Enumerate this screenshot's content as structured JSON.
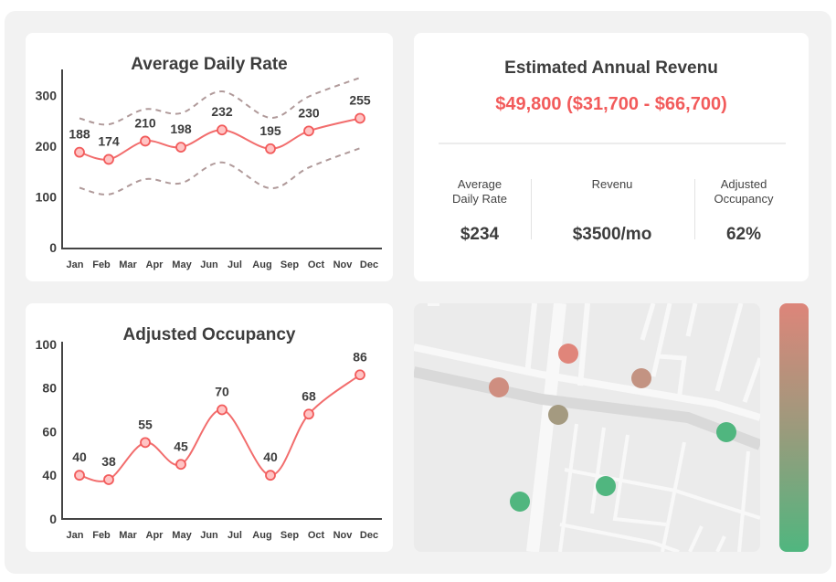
{
  "adr_chart": {
    "chart_data": {
      "type": "line",
      "title": "Average Daily Rate",
      "months": [
        "Jan",
        "Feb",
        "Mar",
        "Apr",
        "May",
        "Jun",
        "Jul",
        "Aug",
        "Sep",
        "Oct",
        "Nov",
        "Dec"
      ],
      "yticks": [
        0,
        100,
        200,
        300
      ],
      "ylim": [
        0,
        340
      ],
      "points": [
        {
          "month": "Jan",
          "value": 188
        },
        {
          "month": "Feb",
          "value": 174
        },
        {
          "month": "Apr",
          "value": 210
        },
        {
          "month": "May",
          "value": 198
        },
        {
          "month": "Jun",
          "value": 232
        },
        {
          "month": "Aug",
          "value": 195
        },
        {
          "month": "Oct",
          "value": 230
        },
        {
          "month": "Dec",
          "value": 255
        }
      ],
      "upper_band": [
        255,
        243,
        273,
        265,
        308,
        256,
        298,
        335
      ],
      "lower_band": [
        118,
        105,
        135,
        127,
        168,
        117,
        158,
        196
      ],
      "line_color": "#f26d6d",
      "band_color": "#b09a9a",
      "grid": false
    }
  },
  "occ_chart": {
    "chart_data": {
      "type": "line",
      "title": "Adjusted Occupancy",
      "months": [
        "Jan",
        "Feb",
        "Mar",
        "Apr",
        "May",
        "Jun",
        "Jul",
        "Aug",
        "Sep",
        "Oct",
        "Nov",
        "Dec"
      ],
      "yticks": [
        0,
        40,
        60,
        80,
        100
      ],
      "points": [
        {
          "month": "Jan",
          "value": 40
        },
        {
          "month": "Feb",
          "value": 38
        },
        {
          "month": "Apr",
          "value": 55
        },
        {
          "month": "May",
          "value": 45
        },
        {
          "month": "Jun",
          "value": 70
        },
        {
          "month": "Aug",
          "value": 40
        },
        {
          "month": "Oct",
          "value": 68
        },
        {
          "month": "Dec",
          "value": 86
        }
      ],
      "line_color": "#f26d6d",
      "grid": false
    }
  },
  "revenue": {
    "title": "Estimated Annual Revenu",
    "value": "$49,800 ($31,700 - $66,700)",
    "accent": "#f25b5b",
    "metrics": [
      {
        "label": "Average\nDaily Rate",
        "value": "$234"
      },
      {
        "label": "Revenu",
        "value": "$3500/mo"
      },
      {
        "label": "Adjusted\nOccupancy",
        "value": "62%"
      }
    ]
  },
  "map": {
    "markers": [
      {
        "color": "#e0857a"
      },
      {
        "color": "#cf8e80"
      },
      {
        "color": "#c39382"
      },
      {
        "color": "#a49a80"
      },
      {
        "color": "#50b67f"
      },
      {
        "color": "#50b67f"
      },
      {
        "color": "#50b67f"
      }
    ],
    "scale": {
      "top_color": "#dd857a",
      "mid_color": "#9c9a7c",
      "bottom_color": "#50b67f"
    }
  }
}
